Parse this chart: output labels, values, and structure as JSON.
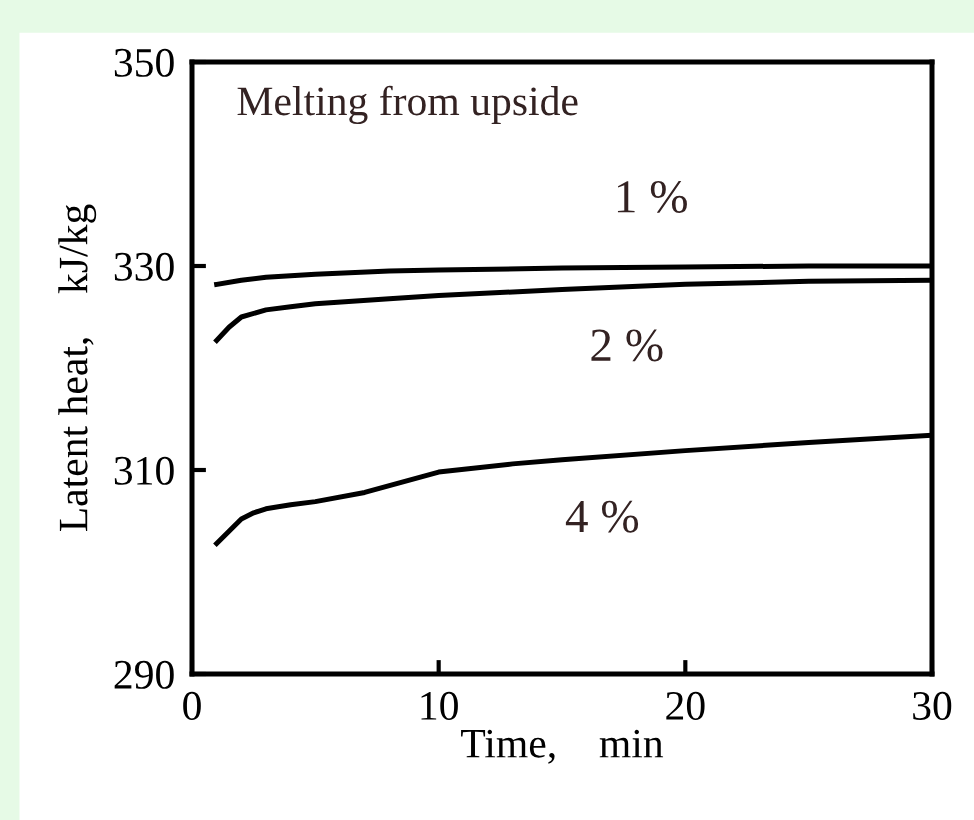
{
  "chart_data": {
    "type": "line",
    "xlabel": "Time,    min",
    "ylabel": "Latent heat,    kJ/kg",
    "xlim": [
      0,
      30
    ],
    "ylim": [
      290,
      350
    ],
    "xticks": [
      0,
      10,
      20,
      30
    ],
    "yticks": [
      290,
      310,
      330,
      350
    ],
    "grid": false,
    "legend": false,
    "marker": "none",
    "line_style": "solid",
    "series": [
      {
        "name": "1 %",
        "color": "#000000",
        "x": [
          1,
          2,
          3,
          5,
          8,
          10,
          15,
          20,
          25,
          30
        ],
        "values": [
          328.2,
          328.6,
          328.9,
          329.2,
          329.5,
          329.6,
          329.8,
          329.9,
          330.0,
          330.0
        ]
      },
      {
        "name": "2 %",
        "color": "#000000",
        "x": [
          1,
          1.5,
          2,
          3,
          4,
          5,
          8,
          10,
          15,
          20,
          25,
          30
        ],
        "values": [
          322.7,
          324.0,
          325.0,
          325.7,
          326.0,
          326.3,
          326.8,
          327.1,
          327.7,
          328.2,
          328.5,
          328.6
        ]
      },
      {
        "name": "4 %",
        "color": "#000000",
        "x": [
          1,
          1.5,
          2,
          2.5,
          3,
          4,
          5,
          7,
          10,
          13,
          15,
          20,
          25,
          30
        ],
        "values": [
          302.8,
          304.0,
          305.2,
          305.8,
          306.2,
          306.6,
          306.9,
          307.8,
          309.8,
          310.6,
          311.0,
          311.9,
          312.7,
          313.4
        ]
      }
    ],
    "annotations": [
      "Melting from upside"
    ]
  }
}
